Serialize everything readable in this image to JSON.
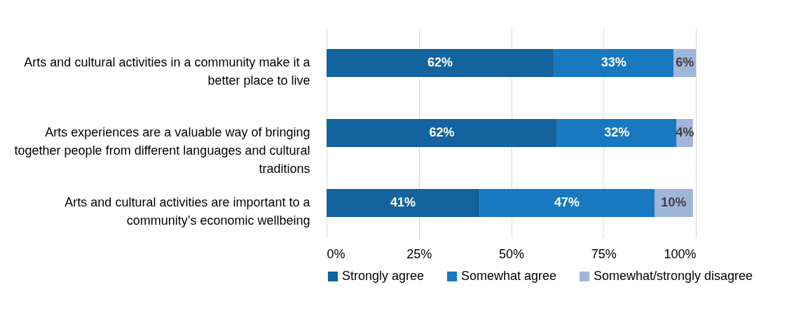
{
  "chart_data": {
    "type": "bar",
    "orientation": "horizontal",
    "stacked": true,
    "categories": [
      "Arts and cultural activities in a community make it a better place to live",
      "Arts experiences are a valuable way of bringing together people from different languages and cultural traditions",
      "Arts and cultural activities are important to a community’s economic wellbeing"
    ],
    "series": [
      {
        "name": "Strongly agree",
        "color": "#12639e",
        "values": [
          61.5,
          62.4,
          41.4
        ],
        "value_labels": [
          "62%",
          "62%",
          "41%"
        ]
      },
      {
        "name": "Somewhat agree",
        "color": "#1878c0",
        "values": [
          32.5,
          32.4,
          47.4
        ],
        "value_labels": [
          "33%",
          "32%",
          "47%"
        ]
      },
      {
        "name": "Somewhat/strongly disagree",
        "color": "#a0b6d9",
        "values": [
          6.0,
          4.4,
          10.4
        ],
        "value_labels": [
          "6%",
          "4%",
          "10%"
        ]
      }
    ],
    "xlim": [
      0,
      100
    ],
    "xticks": [
      {
        "value": 0,
        "label": "0%"
      },
      {
        "value": 25,
        "label": "25%"
      },
      {
        "value": 50,
        "label": "50%"
      },
      {
        "value": 75,
        "label": "75%"
      },
      {
        "value": 100,
        "label": "100%"
      }
    ],
    "grid": "x",
    "legend": "bottom"
  }
}
